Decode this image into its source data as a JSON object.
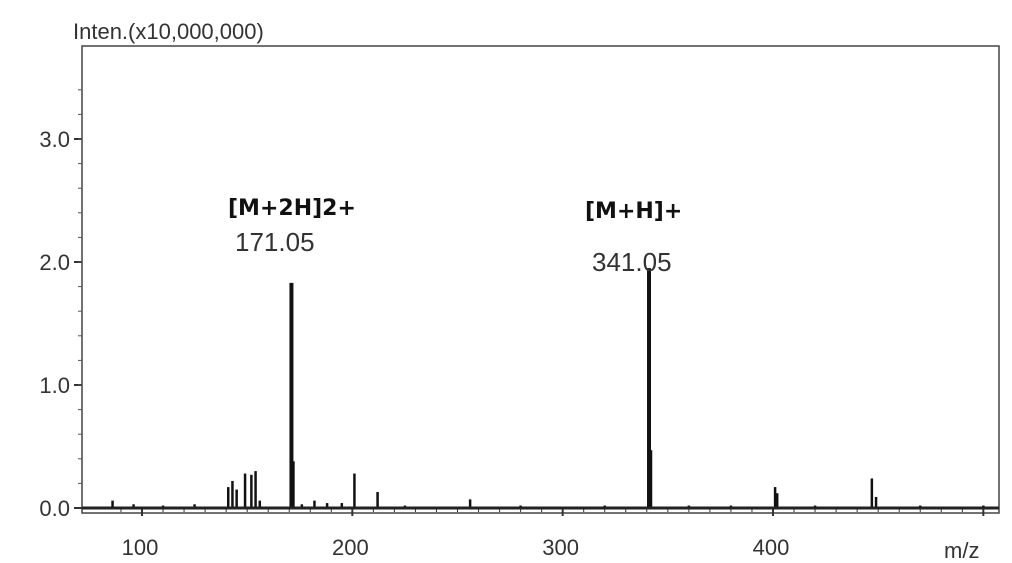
{
  "chart_data": {
    "type": "bar",
    "title": "",
    "ylabel": "Inten.(x10,000,000)",
    "xlabel": "m/z",
    "xlim": [
      82,
      1008
    ],
    "ylim": [
      0,
      3.6
    ],
    "x_ticks": [
      "100",
      "200",
      "300",
      "400"
    ],
    "y_ticks": [
      "0.0",
      "1.0",
      "2.0",
      "3.0"
    ],
    "grid": false,
    "annotations": [
      {
        "ion": "[M+2H]2+",
        "mz": "171.05",
        "x": 171.05
      },
      {
        "ion": "[M+H]+",
        "mz": "341.05",
        "x": 341.05
      }
    ],
    "peaks": [
      {
        "x": 86,
        "y": 0.06
      },
      {
        "x": 96,
        "y": 0.03
      },
      {
        "x": 110,
        "y": 0.02
      },
      {
        "x": 125,
        "y": 0.03
      },
      {
        "x": 141,
        "y": 0.17
      },
      {
        "x": 143,
        "y": 0.22
      },
      {
        "x": 145,
        "y": 0.15
      },
      {
        "x": 149,
        "y": 0.28
      },
      {
        "x": 152,
        "y": 0.27
      },
      {
        "x": 154,
        "y": 0.3
      },
      {
        "x": 156,
        "y": 0.06
      },
      {
        "x": 171.05,
        "y": 1.83
      },
      {
        "x": 172,
        "y": 0.38
      },
      {
        "x": 176,
        "y": 0.03
      },
      {
        "x": 182,
        "y": 0.06
      },
      {
        "x": 188,
        "y": 0.04
      },
      {
        "x": 195,
        "y": 0.04
      },
      {
        "x": 201,
        "y": 0.28
      },
      {
        "x": 212,
        "y": 0.13
      },
      {
        "x": 225,
        "y": 0.02
      },
      {
        "x": 256,
        "y": 0.07
      },
      {
        "x": 280,
        "y": 0.02
      },
      {
        "x": 320,
        "y": 0.02
      },
      {
        "x": 341.05,
        "y": 1.95
      },
      {
        "x": 342,
        "y": 0.47
      },
      {
        "x": 360,
        "y": 0.02
      },
      {
        "x": 380,
        "y": 0.02
      },
      {
        "x": 401,
        "y": 0.17
      },
      {
        "x": 402,
        "y": 0.12
      },
      {
        "x": 420,
        "y": 0.02
      },
      {
        "x": 447,
        "y": 0.24
      },
      {
        "x": 449,
        "y": 0.09
      },
      {
        "x": 470,
        "y": 0.02
      },
      {
        "x": 500,
        "y": 0.02
      }
    ]
  }
}
